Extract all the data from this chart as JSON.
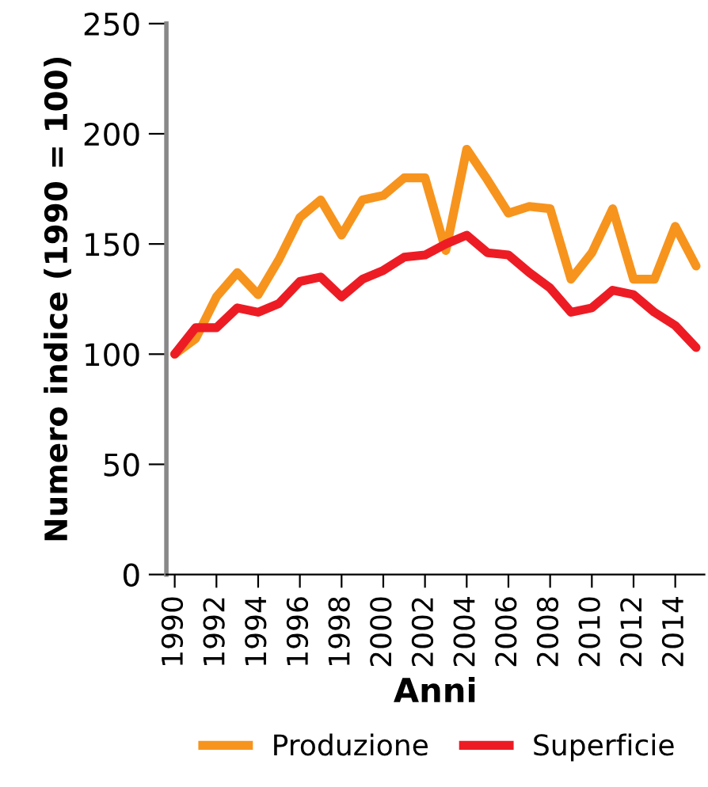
{
  "chart_data": {
    "type": "line",
    "xlabel": "Anni",
    "ylabel": "Numero indice (1990 = 100)",
    "x": [
      1990,
      1991,
      1992,
      1993,
      1994,
      1995,
      1996,
      1997,
      1998,
      1999,
      2000,
      2001,
      2002,
      2003,
      2004,
      2005,
      2006,
      2007,
      2008,
      2009,
      2010,
      2011,
      2012,
      2013,
      2014,
      2015
    ],
    "series": [
      {
        "name": "Produzione",
        "color": "#f7941d",
        "values": [
          100,
          107,
          126,
          137,
          127,
          143,
          162,
          170,
          154,
          170,
          172,
          180,
          180,
          147,
          193,
          179,
          164,
          167,
          166,
          134,
          146,
          166,
          134,
          134,
          158,
          140
        ]
      },
      {
        "name": "Superficie",
        "color": "#ed1c24",
        "values": [
          100,
          112,
          112,
          121,
          119,
          123,
          133,
          135,
          126,
          134,
          138,
          144,
          145,
          150,
          154,
          146,
          145,
          137,
          130,
          119,
          121,
          129,
          127,
          119,
          113,
          103
        ]
      }
    ],
    "xlim": [
      1989.6,
      2015.4
    ],
    "ylim": [
      0,
      250
    ],
    "xticks": [
      1990,
      1992,
      1994,
      1996,
      1998,
      2000,
      2002,
      2004,
      2006,
      2008,
      2010,
      2012,
      2014
    ],
    "yticks": [
      0,
      50,
      100,
      150,
      200,
      250
    ],
    "grid": false,
    "legend": "bottom",
    "marker": "none",
    "line_style": "solid"
  }
}
